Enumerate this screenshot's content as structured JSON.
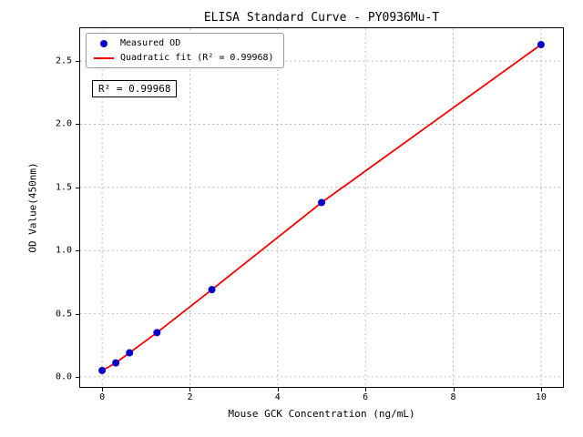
{
  "chart_data": {
    "type": "scatter",
    "title": "ELISA Standard Curve - PY0936Mu-T",
    "xlabel": "Mouse GCK Concentration (ng/mL)",
    "ylabel": "OD Value(450nm)",
    "xlim": [
      -0.5,
      10.5
    ],
    "ylim": [
      -0.08,
      2.76
    ],
    "grid": "dashed",
    "legend_position": "upper left",
    "legend": [
      "Measured OD",
      "Quadratic fit (R² = 0.99968)"
    ],
    "annotation": "R² = 0.99968",
    "series": [
      {
        "name": "Measured OD",
        "type": "scatter",
        "x": [
          0,
          0.3125,
          0.625,
          1.25,
          2.5,
          5,
          10
        ],
        "y": [
          0.05,
          0.11,
          0.19,
          0.35,
          0.69,
          1.38,
          2.63
        ]
      },
      {
        "name": "Quadratic fit",
        "type": "line",
        "r_squared": 0.99968
      }
    ],
    "x_ticks": [
      {
        "v": 0,
        "label": "0"
      },
      {
        "v": 2,
        "label": "2"
      },
      {
        "v": 4,
        "label": "4"
      },
      {
        "v": 6,
        "label": "6"
      },
      {
        "v": 8,
        "label": "8"
      },
      {
        "v": 10,
        "label": "10"
      }
    ],
    "y_ticks": [
      {
        "v": 0.0,
        "label": "0.0"
      },
      {
        "v": 0.5,
        "label": "0.5"
      },
      {
        "v": 1.0,
        "label": "1.0"
      },
      {
        "v": 1.5,
        "label": "1.5"
      },
      {
        "v": 2.0,
        "label": "2.0"
      },
      {
        "v": 2.5,
        "label": "2.5"
      }
    ],
    "colors": {
      "points": "#0000cd",
      "fit_line": "#ff0000",
      "grid": "#b0b0b0"
    }
  }
}
